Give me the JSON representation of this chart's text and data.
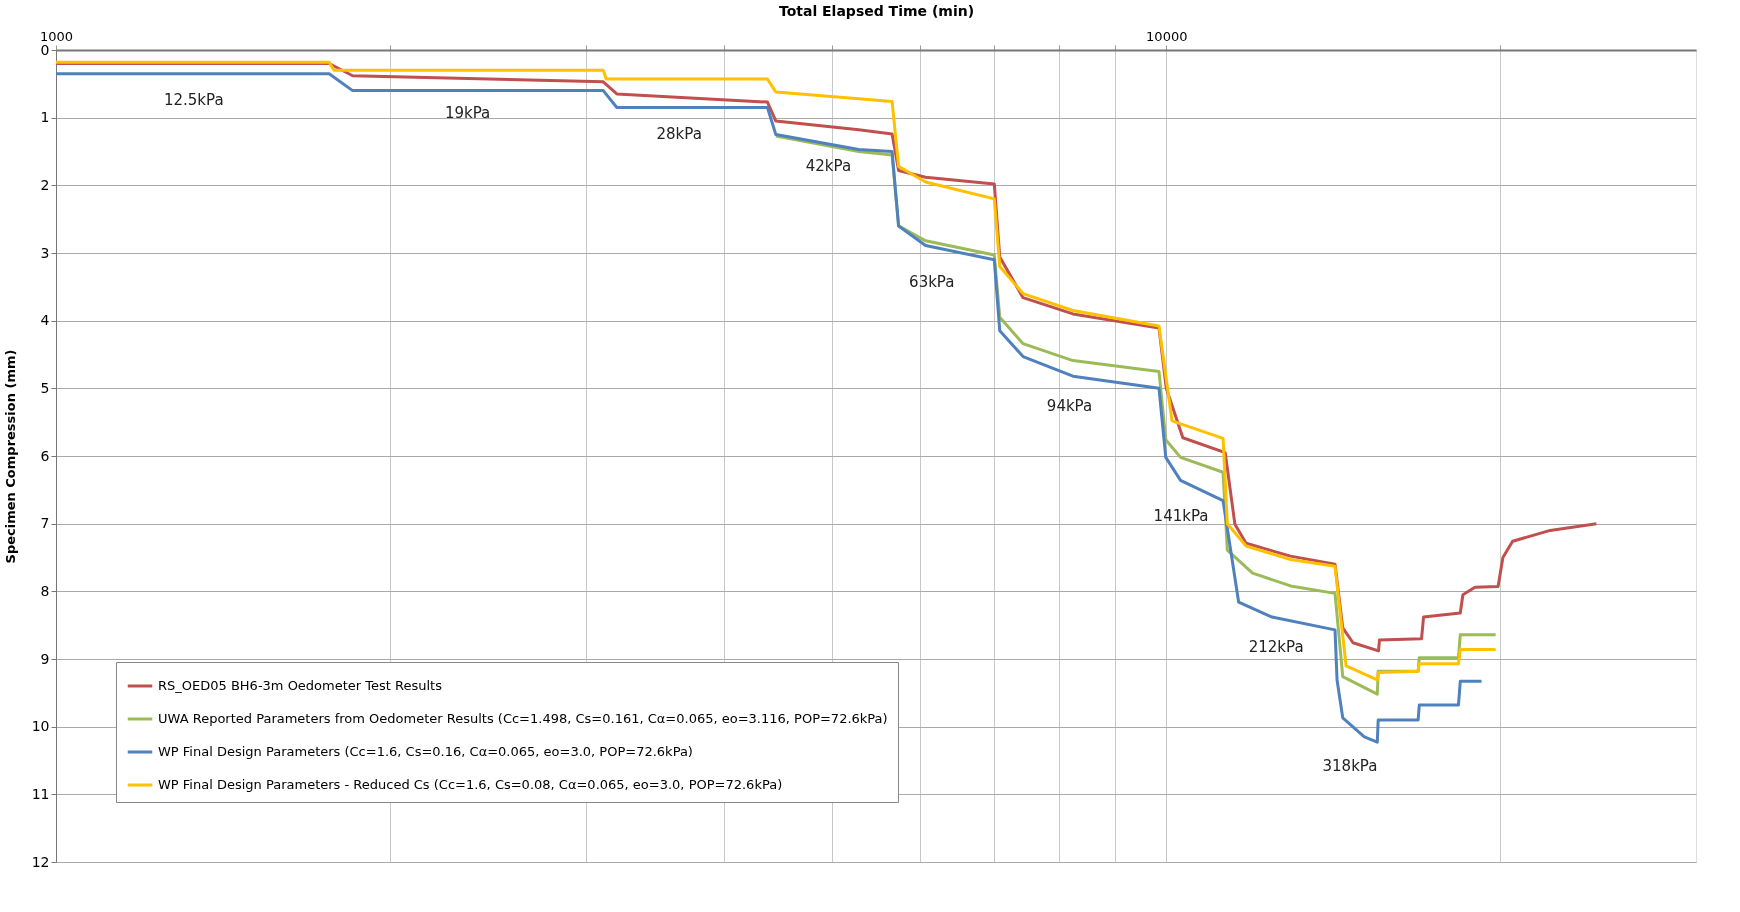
{
  "chart_data": {
    "type": "line",
    "xlabel": "Total Elapsed Time (min)",
    "ylabel": "Specimen Compression (mm)",
    "log": "x",
    "xlim": [
      1000,
      30000
    ],
    "ylim": [
      12,
      0
    ],
    "xticks": [
      1000,
      {
        "value": 2000,
        "label": null
      },
      {
        "value": 3000,
        "label": null
      },
      {
        "value": 4000,
        "label": null
      },
      {
        "value": 5000,
        "label": null
      },
      {
        "value": 6000,
        "label": null
      },
      {
        "value": 7000,
        "label": null
      },
      {
        "value": 8000,
        "label": null
      },
      {
        "value": 9000,
        "label": null
      },
      10000,
      {
        "value": 20000,
        "label": null
      }
    ],
    "yticks": [
      0,
      1,
      2,
      3,
      4,
      5,
      6,
      7,
      8,
      9,
      10,
      11,
      12
    ],
    "grid": true,
    "legend": "bottom left",
    "marker": "none",
    "line_style": "solid",
    "series": [
      {
        "name": "RS_OED05 BH6-3m Oedometer Test Results",
        "color": "#c0504d",
        "x": [
          1000,
          1762,
          1850,
          3111,
          3200,
          4373,
          4450,
          5285,
          5663,
          5740,
          6070,
          7000,
          7080,
          7430,
          8240,
          9850,
          10000,
          10350,
          11300,
          11530,
          11800,
          12940,
          14190,
          14420,
          14730,
          15530,
          15560,
          16980,
          17050,
          18400,
          18500,
          18970,
          19900,
          20100,
          20510,
          22170,
          24400
        ],
        "values": [
          0.2,
          0.2,
          0.38,
          0.47,
          0.65,
          0.77,
          1.05,
          1.18,
          1.24,
          1.78,
          1.88,
          1.98,
          3.06,
          3.66,
          3.9,
          4.11,
          5.0,
          5.73,
          5.95,
          7.01,
          7.29,
          7.48,
          7.6,
          8.54,
          8.76,
          8.88,
          8.72,
          8.7,
          8.38,
          8.32,
          8.05,
          7.94,
          7.93,
          7.5,
          7.26,
          7.1,
          7.0
        ]
      },
      {
        "name": "UWA Reported Parameters from Oedometer Results (Cc=1.498, Cs=0.161, Cα=0.065, eo=3.116, POP=72.6kPa)",
        "color": "#9bbb59",
        "x": [
          4450,
          5285,
          5663,
          5740,
          6070,
          7000,
          7080,
          7430,
          8240,
          9850,
          9990,
          10300,
          11250,
          11350,
          11960,
          12940,
          14190,
          14420,
          15490,
          15520,
          16860,
          16900,
          18330,
          18400,
          19800
        ],
        "values": [
          1.27,
          1.5,
          1.55,
          2.6,
          2.82,
          3.03,
          3.95,
          4.34,
          4.59,
          4.75,
          5.76,
          6.02,
          6.24,
          7.39,
          7.73,
          7.92,
          8.03,
          9.26,
          9.52,
          9.18,
          9.18,
          8.98,
          8.98,
          8.64,
          8.64
        ]
      },
      {
        "name": "WP Final Design Parameters (Cc=1.6, Cs=0.16, Cα=0.065, eo=3.0, POP=72.6kPa)",
        "color": "#4f81bd",
        "x": [
          1000,
          1762,
          1850,
          3111,
          3200,
          4373,
          4450,
          5285,
          5663,
          5740,
          6070,
          7000,
          7080,
          7430,
          8240,
          9850,
          9990,
          10300,
          11250,
          11620,
          12450,
          14190,
          14250,
          14420,
          15080,
          15490,
          15520,
          16860,
          16900,
          18330,
          18400,
          19230
        ],
        "values": [
          0.35,
          0.35,
          0.6,
          0.6,
          0.85,
          0.85,
          1.25,
          1.47,
          1.5,
          2.6,
          2.89,
          3.1,
          4.15,
          4.53,
          4.82,
          5.0,
          6.02,
          6.36,
          6.66,
          8.16,
          8.38,
          8.57,
          9.31,
          9.87,
          10.15,
          10.23,
          9.9,
          9.9,
          9.68,
          9.68,
          9.33,
          9.33
        ]
      },
      {
        "name": "WP Final Design Parameters - Reduced Cs (Cc=1.6, Cs=0.08, Cα=0.065, eo=3.0, POP=72.6kPa)",
        "color": "#ffc000",
        "x": [
          1000,
          1762,
          1780,
          3111,
          3130,
          4373,
          4450,
          5285,
          5663,
          5740,
          6070,
          7000,
          7080,
          7430,
          8240,
          9850,
          10120,
          11250,
          11350,
          11800,
          12940,
          14190,
          14520,
          15490,
          15520,
          16860,
          16900,
          18330,
          18400,
          19800
        ],
        "values": [
          0.18,
          0.18,
          0.3,
          0.3,
          0.43,
          0.43,
          0.62,
          0.72,
          0.76,
          1.72,
          1.95,
          2.2,
          3.2,
          3.6,
          3.85,
          4.08,
          5.48,
          5.74,
          7.0,
          7.33,
          7.53,
          7.63,
          9.1,
          9.31,
          9.2,
          9.18,
          9.07,
          9.07,
          8.86,
          8.86
        ]
      }
    ],
    "annotations": [
      "12.5kPa",
      "19kPa",
      "28kPa",
      "42kPa",
      "63kPa",
      "94kPa",
      "141kPa",
      "212kPa",
      "318kPa"
    ]
  }
}
